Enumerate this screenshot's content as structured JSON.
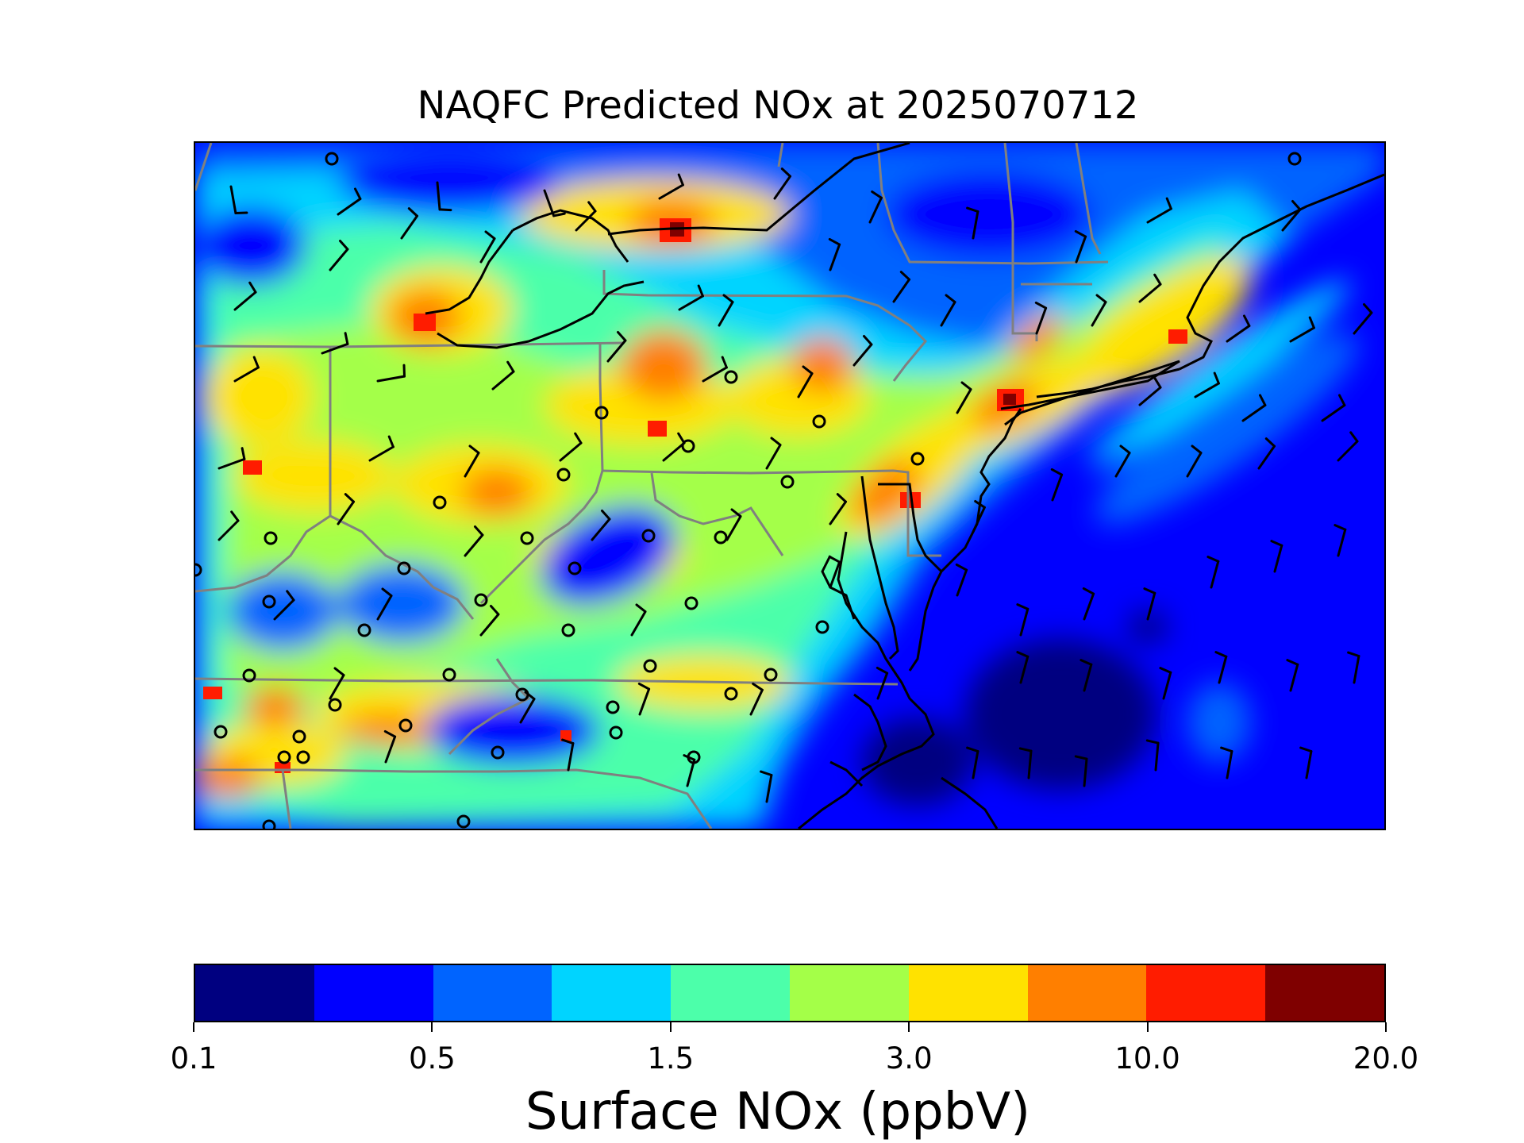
{
  "title": "NAQFC Predicted NOx at 2025070712",
  "colorbar": {
    "label": "Surface NOx (ppbV)",
    "colors": [
      "#000080",
      "#0000ff",
      "#0064ff",
      "#00d4ff",
      "#4cffaa",
      "#a4ff48",
      "#ffe200",
      "#ff7f00",
      "#ff1c00",
      "#7f0000"
    ],
    "tick_labels": [
      "0.1",
      "0.5",
      "1.5",
      "3.0",
      "10.0",
      "20.0"
    ]
  },
  "map": {
    "variable": "Surface NOx",
    "units": "ppbV",
    "projection": "Lambert conformal",
    "features": [
      "state-boundaries",
      "coastlines",
      "wind-barbs",
      "monitor-sites"
    ]
  }
}
